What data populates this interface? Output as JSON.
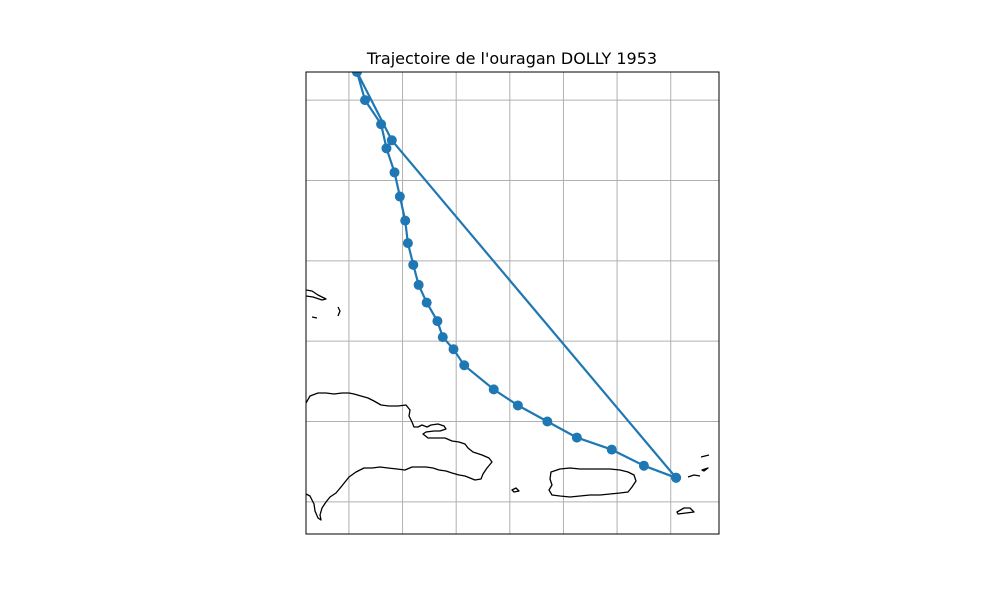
{
  "title": "Trajectoire de l'ouragan DOLLY 1953",
  "colors": {
    "track": "#1f77b4",
    "grid": "#b0b0b0",
    "coast": "#000000"
  },
  "chart_data": {
    "type": "line",
    "title": "Trajectoire de l'ouragan DOLLY 1953",
    "xlabel": "",
    "ylabel": "",
    "grid": true,
    "legend": "none",
    "map_extent": {
      "lon": [
        -71.8,
        -64.1
      ],
      "lat": [
        17.1,
        22.85
      ]
    },
    "gridlines": {
      "lon": [
        -71,
        -70,
        -69,
        -68,
        -67,
        -66,
        -65
      ],
      "lat": [
        17.5,
        18.5,
        19.5,
        20.5,
        21.5,
        22.5
      ]
    },
    "series": [
      {
        "marker": "circle",
        "lon": [
          -64.9,
          -65.5,
          -66.1,
          -66.75,
          -67.3,
          -67.85,
          -68.3,
          -68.85,
          -69.05,
          -69.25,
          -69.35,
          -69.55,
          -69.7,
          -69.8,
          -69.9,
          -69.95,
          -70.05,
          -70.15,
          -70.3,
          -70.4,
          -70.7,
          -70.85,
          -70.2,
          -64.9
        ],
        "lat": [
          17.8,
          17.95,
          18.15,
          18.3,
          18.5,
          18.7,
          18.9,
          19.2,
          19.4,
          19.55,
          19.75,
          19.98,
          20.2,
          20.45,
          20.72,
          21.0,
          21.3,
          21.6,
          21.9,
          22.2,
          22.5,
          22.85,
          22.0,
          17.8
        ]
      }
    ]
  }
}
